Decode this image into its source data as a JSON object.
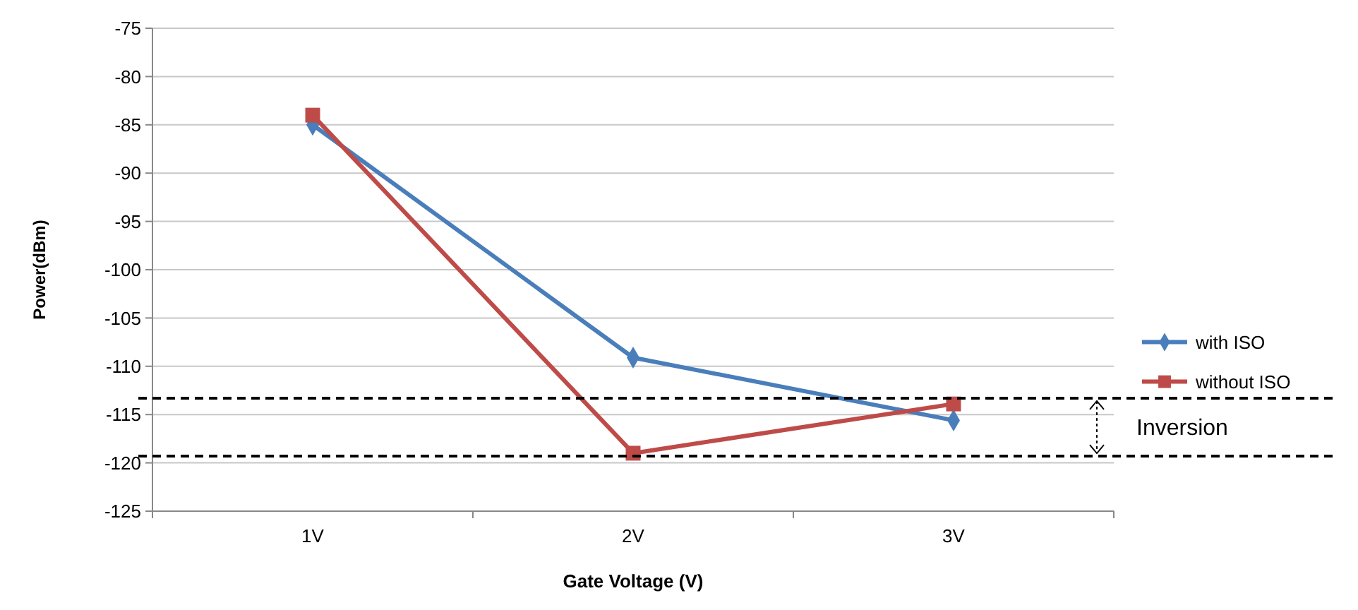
{
  "chart_data": {
    "type": "line",
    "xlabel": "Gate Voltage (V)",
    "ylabel": "Power(dBm)",
    "categories": [
      "1V",
      "2V",
      "3V"
    ],
    "series": [
      {
        "name": "with ISO",
        "color": "#4a7ebb",
        "marker": "diamond",
        "values": [
          -85,
          -109.1,
          -115.6
        ]
      },
      {
        "name": "without ISO",
        "color": "#be4b48",
        "marker": "square",
        "values": [
          -84,
          -119,
          -113.9
        ]
      }
    ],
    "ylim": [
      -125,
      -75
    ],
    "yticks": [
      -125,
      -120,
      -115,
      -110,
      -105,
      -100,
      -95,
      -90,
      -85,
      -80,
      -75
    ],
    "grid": "y",
    "legend": "right",
    "ref_lines": [
      {
        "axis": "y",
        "value": -113.3,
        "color": "#000000",
        "line_style": "dashed"
      },
      {
        "axis": "y",
        "value": -119.3,
        "color": "#000000",
        "line_style": "dashed"
      }
    ],
    "annotations": [
      "Inversion"
    ]
  }
}
